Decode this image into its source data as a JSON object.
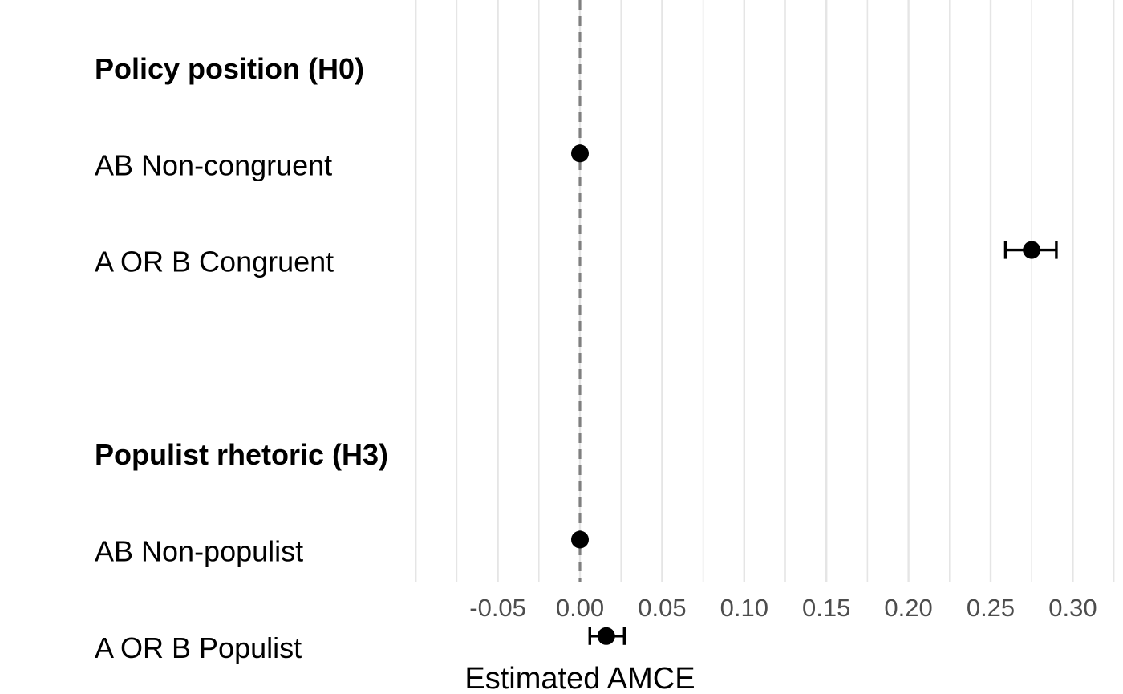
{
  "chart_data": {
    "type": "scatter",
    "subtype": "coefficient-plot",
    "title": "",
    "xlabel": "Estimated AMCE",
    "ylabel": "",
    "xlim": [
      -0.1,
      0.325
    ],
    "x_ticks": [
      -0.05,
      0.0,
      0.05,
      0.1,
      0.15,
      0.2,
      0.25,
      0.3
    ],
    "x_tick_labels": [
      "-0.05",
      "0.00",
      "0.05",
      "0.10",
      "0.15",
      "0.20",
      "0.25",
      "0.30"
    ],
    "grid": true,
    "reference_line": {
      "x": 0,
      "style": "dashed",
      "color": "#7f7f7f"
    },
    "rows": [
      {
        "label": "Policy position (H0)",
        "header": true
      },
      {
        "label": "AB Non-congruent",
        "estimate": 0.0,
        "lower": null,
        "upper": null
      },
      {
        "label": "A OR B Congruent",
        "estimate": 0.275,
        "lower": 0.259,
        "upper": 0.29
      },
      {
        "label": "",
        "spacer": true
      },
      {
        "label": "Populist rhetoric (H3)",
        "header": true
      },
      {
        "label": "AB Non-populist",
        "estimate": 0.0,
        "lower": null,
        "upper": null
      },
      {
        "label": "A OR B Populist",
        "estimate": 0.016,
        "lower": 0.006,
        "upper": 0.027
      }
    ],
    "colors": {
      "point": "#000000",
      "grid": "#e5e5e5",
      "reference": "#7f7f7f"
    }
  }
}
